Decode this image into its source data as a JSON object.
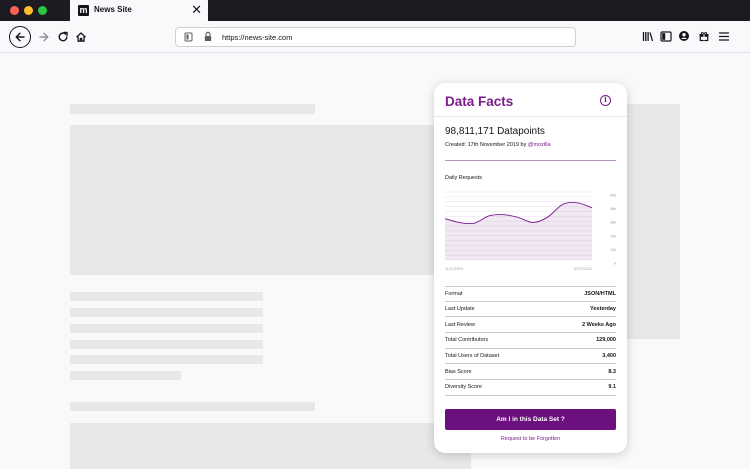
{
  "browser": {
    "tab_title": "News Site",
    "tab_favicon_letter": "m",
    "tab_close_glyph": "✕",
    "url": "https://news-site.com",
    "icons": [
      "back-arrow-icon",
      "forward-arrow-icon",
      "reload-icon",
      "home-icon",
      "shield-icon",
      "lock-icon",
      "library-icon",
      "sidebar-icon",
      "account-icon",
      "gift-icon",
      "menu-icon"
    ]
  },
  "card": {
    "title": "Data Facts",
    "info_glyph": "i",
    "datapoints": "98,811,171 Datapoints",
    "created_prefix": "Created: 17th November 2019 by ",
    "created_author": "@mozilla",
    "accent_color": "#6c0f7f"
  },
  "chart_data": {
    "type": "area",
    "title": "Daily Requests",
    "x_tick_labels": [
      "11/17/2019",
      "07/17/2021"
    ],
    "y_tick_labels": [
      "60k",
      "48k",
      "36k",
      "24k",
      "12k",
      "0"
    ],
    "ylim": [
      0,
      60000
    ],
    "grid": true,
    "series": [
      {
        "x": [
          0,
          0.1,
          0.2,
          0.3,
          0.4,
          0.5,
          0.6,
          0.7,
          0.8,
          0.9,
          1.0
        ],
        "values": [
          36500,
          33000,
          32500,
          39000,
          40000,
          37500,
          33000,
          38000,
          49000,
          50500,
          46000
        ]
      }
    ]
  },
  "stats": [
    {
      "label": "Format",
      "value": "JSON/HTML"
    },
    {
      "label": "Last Update",
      "value": "Yesterday"
    },
    {
      "label": "Last Review",
      "value": "2 Weeks Ago"
    },
    {
      "label": "Total Contributors",
      "value": "129,000"
    },
    {
      "label": "Total Users of Dataset",
      "value": "3,400"
    },
    {
      "label": "Bias Score",
      "value": "8.3"
    },
    {
      "label": "Diversity Score",
      "value": "9.1"
    }
  ],
  "actions": {
    "primary_label": "Am I in this Data Set ?",
    "secondary_label": "Request to be Forgotten"
  }
}
